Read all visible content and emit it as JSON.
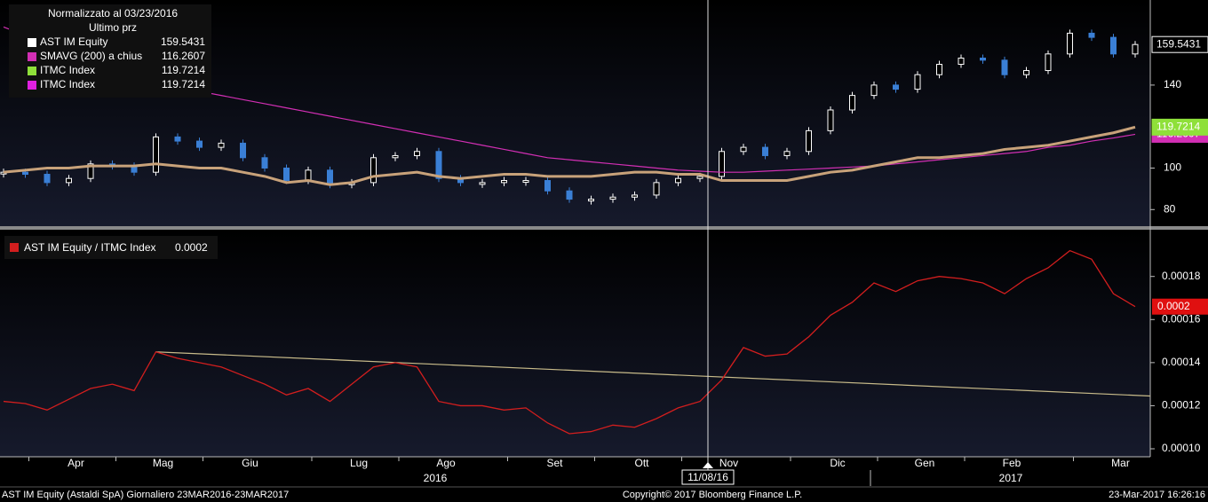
{
  "chart_data": [
    {
      "type": "candlestick_lines",
      "legend_title": "Normalizzato al 03/23/2016",
      "legend_subtitle": "Ultimo prz",
      "ylim": [
        72,
        181
      ],
      "yticks": [
        80,
        100,
        140
      ],
      "series": [
        {
          "name": "AST IM Equity",
          "color": "#ffffff",
          "down_color": "#3a7fd5",
          "style": "candle",
          "values": [
            98,
            97,
            93,
            95,
            102,
            101,
            98,
            115,
            113,
            110,
            112,
            105,
            100,
            94,
            99,
            92,
            93,
            105,
            106,
            108,
            95,
            93,
            93,
            94,
            94,
            89,
            85,
            85,
            86,
            87,
            93,
            95,
            96,
            108,
            110,
            106,
            108,
            118,
            128,
            135,
            140,
            138,
            145,
            150,
            153,
            152,
            145,
            147,
            155,
            165,
            163,
            155,
            159.5431
          ]
        },
        {
          "name": "SMAVG (200) a chius",
          "color": "#d22fb4",
          "style": "line",
          "values": [
            168,
            164,
            160,
            156,
            152,
            149,
            146,
            143,
            140,
            137,
            135,
            133,
            131,
            129,
            127,
            125,
            123,
            121,
            119,
            117,
            115,
            113,
            111,
            109,
            107,
            105,
            104,
            103,
            102,
            101,
            100,
            99,
            98.5,
            98,
            98,
            98.5,
            99,
            99.5,
            100,
            100.5,
            101,
            102,
            103,
            104,
            105,
            106,
            107,
            108,
            110,
            111,
            113,
            114.5,
            116.2607
          ]
        },
        {
          "name": "ITMC Index",
          "color": "#8fe03a",
          "line_color": "#c8a27a",
          "style": "line",
          "values": [
            98,
            99,
            100,
            100,
            101,
            101,
            101,
            102,
            101,
            100,
            100,
            98,
            96,
            93,
            94,
            92,
            93,
            96,
            97,
            98,
            96,
            95,
            96,
            97,
            97,
            96,
            96,
            96,
            97,
            98,
            98,
            97,
            97,
            94,
            94,
            94,
            94,
            96,
            98,
            99,
            101,
            103,
            105,
            105,
            106,
            107,
            109,
            110,
            111,
            113,
            115,
            117,
            119.7214
          ]
        }
      ],
      "legend_extra": {
        "name": "ITMC Index",
        "color": "#e020e0",
        "value_label": "119.7214"
      }
    },
    {
      "type": "line",
      "categories": [
        null,
        null,
        null,
        "Apr",
        null,
        null,
        null,
        "Mag",
        null,
        null,
        null,
        "Giu",
        null,
        null,
        null,
        null,
        "Lug",
        null,
        null,
        null,
        "Ago",
        null,
        null,
        null,
        null,
        "Set",
        null,
        null,
        null,
        "Ott",
        null,
        null,
        null,
        "Nov",
        null,
        null,
        null,
        null,
        "Dic",
        null,
        null,
        null,
        "Gen",
        null,
        null,
        null,
        "Feb",
        null,
        null,
        null,
        null,
        "Mar",
        null
      ],
      "year_labels": [
        "2016",
        "2017"
      ],
      "crosshair_label": "11/08/16",
      "ylim": [
        9.63e-05,
        0.0002017
      ],
      "yticks": [
        {
          "value": 0.0001,
          "label": "0.00010"
        },
        0.00012,
        0.00014,
        0.00016,
        0.00018
      ],
      "series": [
        {
          "name": "AST IM Equity / ITMC Index",
          "color": "#d21e1e",
          "last_value_label": "0.0002",
          "values": [
            0.000122,
            0.000121,
            0.000118,
            0.000123,
            0.000128,
            0.00013,
            0.000127,
            0.000145,
            0.000142,
            0.00014,
            0.000138,
            0.000134,
            0.00013,
            0.000125,
            0.000128,
            0.000122,
            0.00013,
            0.000138,
            0.00014,
            0.000138,
            0.000122,
            0.00012,
            0.00012,
            0.000118,
            0.000119,
            0.000112,
            0.000107,
            0.000108,
            0.000111,
            0.00011,
            0.000114,
            0.000119,
            0.000122,
            0.000132,
            0.000147,
            0.000143,
            0.000144,
            0.000152,
            0.000162,
            0.000168,
            0.000177,
            0.000173,
            0.000178,
            0.00018,
            0.000179,
            0.000177,
            0.000172,
            0.000179,
            0.000184,
            0.000192,
            0.000188,
            0.000172,
            0.000166
          ]
        }
      ],
      "trendline": {
        "color": "#c8bb8a",
        "values": [
          0.000145,
          0.0001245
        ]
      }
    }
  ],
  "footer": {
    "left": "AST IM Equity (Astaldi SpA)  Giornaliero 23MAR2016-23MAR2017",
    "center": "Copyright© 2017 Bloomberg Finance L.P.",
    "right": "23-Mar-2017 16:26:16"
  }
}
